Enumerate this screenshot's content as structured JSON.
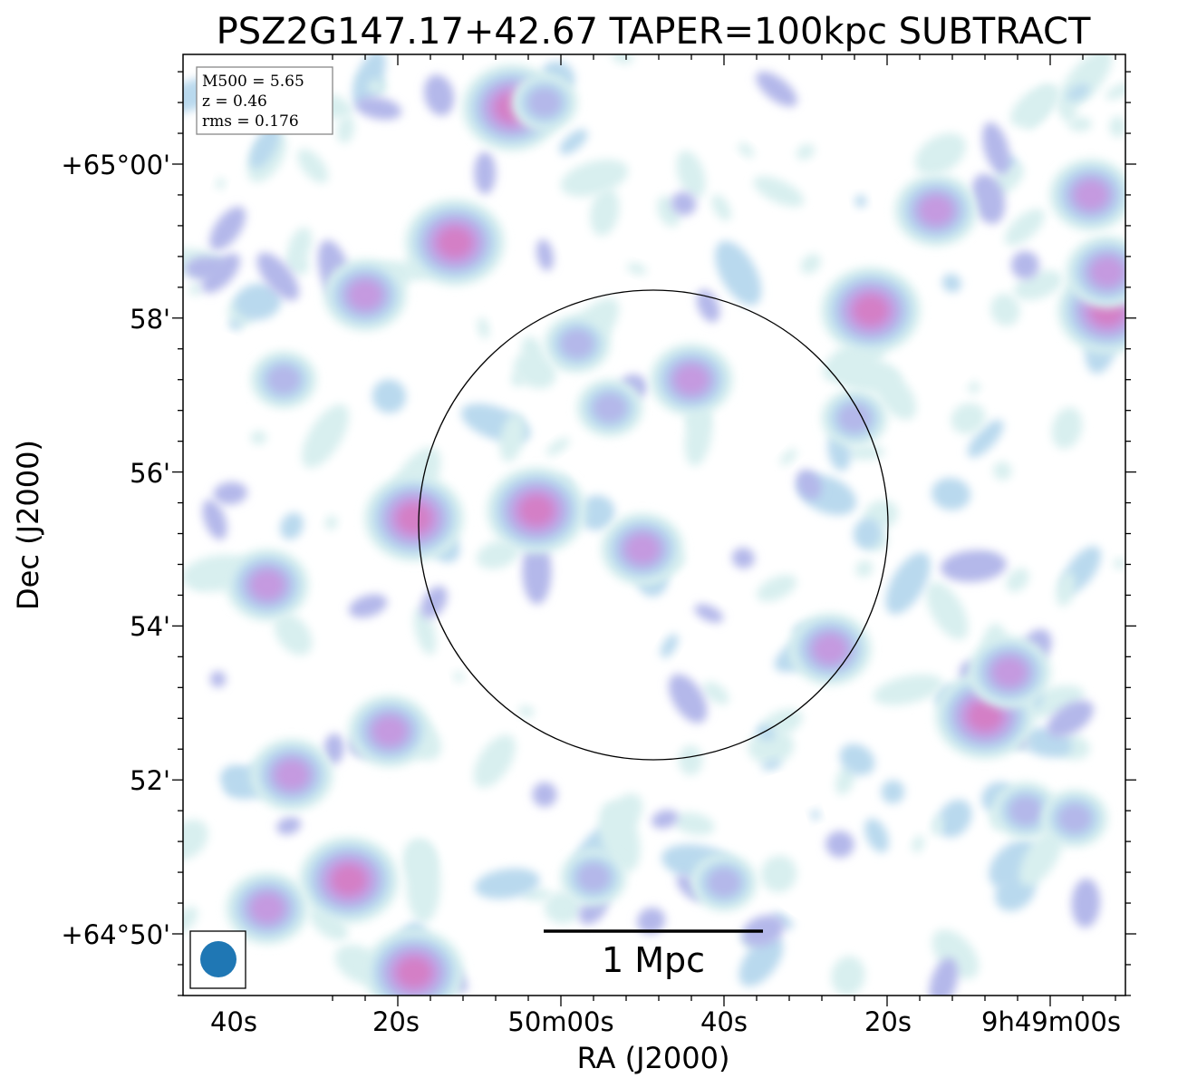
{
  "chart_data": {
    "type": "heatmap",
    "title": "PSZ2G147.17+42.67 TAPER=100kpc SUBTRACT",
    "xlabel": "RA (J2000)",
    "ylabel": "Dec (J2000)",
    "x_ticks": [
      "40s",
      "20s",
      "50m00s",
      "40s",
      "20s",
      "9h49m00s"
    ],
    "y_ticks": [
      "+65°00'",
      "58'",
      "56'",
      "54'",
      "52'",
      "+64°50'"
    ],
    "info_box": {
      "line1": "M500 = 5.65",
      "line2": "z = 0.46",
      "line3": "rms = 0.176"
    },
    "scalebar_label": "1 Mpc",
    "colormap": [
      "#d8efef",
      "#b9d9ee",
      "#b4b8ea",
      "#c59ae0",
      "#d47fc6"
    ],
    "beam_color": "#1f77b4",
    "sources": [
      {
        "ra": "9h50m03s",
        "dec": "+64°55'30\"",
        "level": 4
      },
      {
        "ra": "9h49m50s",
        "dec": "+64°55'00\"",
        "level": 3
      },
      {
        "ra": "9h49m54s",
        "dec": "+64°56'50\"",
        "level": 2
      },
      {
        "ra": "9h50m18s",
        "dec": "+64°55'24\"",
        "level": 4
      },
      {
        "ra": "9h50m13s",
        "dec": "+64°58'59\"",
        "level": 4
      },
      {
        "ra": "9h49m22s",
        "dec": "+64°58'06\"",
        "level": 4
      },
      {
        "ra": "9h49m44s",
        "dec": "+64°57'12\"",
        "level": 3
      },
      {
        "ra": "9h49m08s",
        "dec": "+64°52'50\"",
        "level": 4
      },
      {
        "ra": "9h49m05s",
        "dec": "+64°53'24\"",
        "level": 3
      },
      {
        "ra": "9h49m27s",
        "dec": "+64°53'42\"",
        "level": 3
      },
      {
        "ra": "9h50m26s",
        "dec": "+64°50'42\"",
        "level": 4
      },
      {
        "ra": "9h50m21s",
        "dec": "+64°52'38\"",
        "level": 3
      },
      {
        "ra": "9h50m33s",
        "dec": "+64°52'04\"",
        "level": 3
      },
      {
        "ra": "9h50m06s",
        "dec": "+65°00'44\"",
        "level": 4
      },
      {
        "ra": "9h48m53s",
        "dec": "+64°58'06\"",
        "level": 4
      },
      {
        "ra": "9h48m53s",
        "dec": "+64°58'36\"",
        "level": 3
      },
      {
        "ra": "9h50m18s",
        "dec": "+64°49'30\"",
        "level": 4
      },
      {
        "ra": "9h50m36s",
        "dec": "+64°50'20\"",
        "level": 3
      },
      {
        "ra": "9h50m34s",
        "dec": "+64°57'12\"",
        "level": 2
      },
      {
        "ra": "9h50m24s",
        "dec": "+64°58'18\"",
        "level": 3
      },
      {
        "ra": "9h50m36s",
        "dec": "+64°54'32\"",
        "level": 3
      },
      {
        "ra": "9h49m56s",
        "dec": "+64°50'44\"",
        "level": 2
      },
      {
        "ra": "9h49m24s",
        "dec": "+64°56'42\"",
        "level": 2
      },
      {
        "ra": "9h49m14s",
        "dec": "+64°59'24\"",
        "level": 3
      },
      {
        "ra": "9h48m55s",
        "dec": "+64°59'36\"",
        "level": 3
      },
      {
        "ra": "9h49m03s",
        "dec": "+64°51'36\"",
        "level": 2
      },
      {
        "ra": "9h48m57s",
        "dec": "+64°51'30\"",
        "level": 2
      },
      {
        "ra": "9h50m02s",
        "dec": "+65°00'48\"",
        "level": 2
      },
      {
        "ra": "9h49m40s",
        "dec": "+64°50'40\"",
        "level": 2
      },
      {
        "ra": "9h49m58s",
        "dec": "+64°57'40\"",
        "level": 2
      }
    ]
  }
}
